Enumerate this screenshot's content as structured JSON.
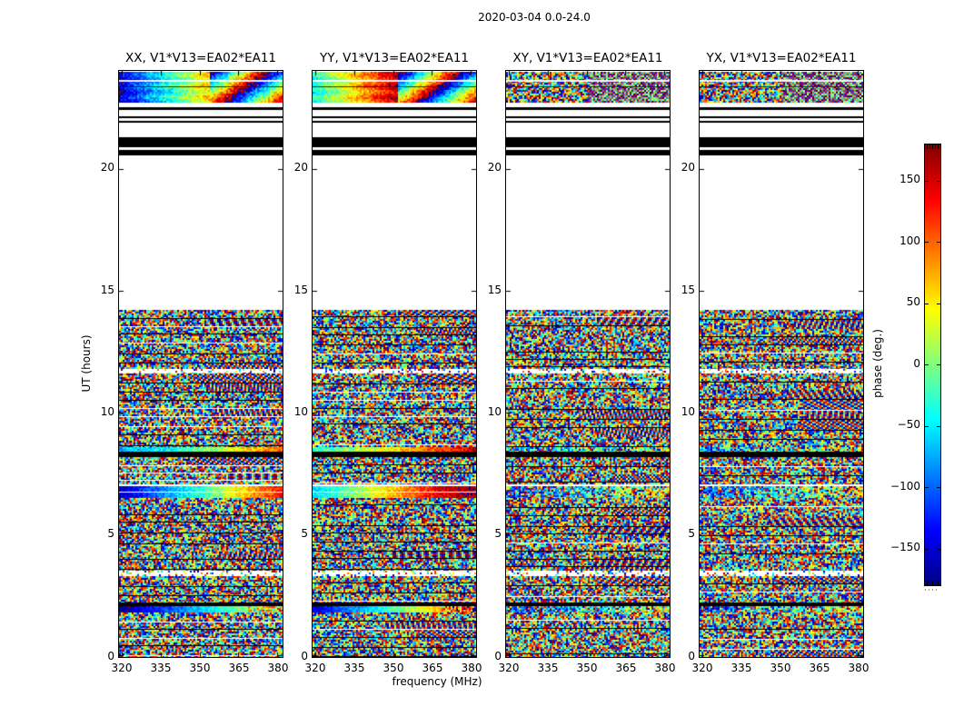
{
  "figure": {
    "title": "2020-03-04 0.0-24.0",
    "background": "#ffffff"
  },
  "axes": {
    "ylabel": "UT (hours)",
    "xlabel": "frequency (MHz)",
    "x_tick_labels": [
      "320",
      "335",
      "350",
      "365",
      "380"
    ],
    "y_tick_labels": [
      "0",
      "5",
      "10",
      "15",
      "20"
    ],
    "x_tick_values_mhz": [
      320,
      335,
      350,
      365,
      380
    ],
    "y_tick_values_hours": [
      0,
      5,
      10,
      15,
      20
    ]
  },
  "colorbar": {
    "label": "phase (deg.)",
    "tick_labels": [
      "150",
      "100",
      "50",
      "0",
      "−50",
      "−100",
      "−150"
    ],
    "tick_values": [
      150,
      100,
      50,
      0,
      -50,
      -100,
      -150
    ],
    "colormap": "jet",
    "top_color": "#800000",
    "bottom_color": "#000083"
  },
  "subplots": [
    {
      "id": "XX",
      "title": "XX, V1*V13=EA02*EA11"
    },
    {
      "id": "YY",
      "title": "YY, V1*V13=EA02*EA11"
    },
    {
      "id": "XY",
      "title": "XY, V1*V13=EA02*EA11"
    },
    {
      "id": "YX",
      "title": "YX, V1*V13=EA02*EA11"
    }
  ],
  "chart_data": {
    "type": "heatmap",
    "title": "2020-03-04 0.0-24.0",
    "xlabel": "frequency (MHz)",
    "ylabel": "UT (hours)",
    "zlabel": "phase (deg.)",
    "x_range_mhz": [
      319,
      382
    ],
    "y_range_hours": [
      0,
      24
    ],
    "z_range_deg": [
      -180,
      180
    ],
    "colormap": "jet",
    "noise_seed": 1337,
    "bands": [
      {
        "ut": [
          22.7,
          23.96
        ],
        "kind": "topband"
      },
      {
        "ut": [
          22.4,
          22.51
        ],
        "kind": "black"
      },
      {
        "ut": [
          22.07,
          22.14
        ],
        "kind": "black"
      },
      {
        "ut": [
          21.88,
          21.95
        ],
        "kind": "black"
      },
      {
        "ut": [
          20.87,
          21.28
        ],
        "kind": "black"
      },
      {
        "ut": [
          20.54,
          20.76
        ],
        "kind": "black"
      },
      {
        "ut": [
          11.8,
          14.22
        ],
        "kind": "noise"
      },
      {
        "ut": [
          11.61,
          11.8
        ],
        "kind": "sparse"
      },
      {
        "ut": [
          8.6,
          11.61
        ],
        "kind": "noise"
      },
      {
        "ut": [
          8.41,
          8.6
        ],
        "kind": "smooth",
        "style": "s1"
      },
      {
        "ut": [
          8.19,
          8.41
        ],
        "kind": "black"
      },
      {
        "ut": [
          7.07,
          8.19
        ],
        "kind": "noise"
      },
      {
        "ut": [
          6.99,
          7.07
        ],
        "kind": "white"
      },
      {
        "ut": [
          6.51,
          6.99
        ],
        "kind": "smooth",
        "style": "s2"
      },
      {
        "ut": [
          3.53,
          6.51
        ],
        "kind": "noise"
      },
      {
        "ut": [
          3.31,
          3.53
        ],
        "kind": "sparse"
      },
      {
        "ut": [
          2.23,
          3.31
        ],
        "kind": "noise"
      },
      {
        "ut": [
          2.08,
          2.23
        ],
        "kind": "black"
      },
      {
        "ut": [
          1.82,
          2.08
        ],
        "kind": "smooth",
        "style": "s3"
      },
      {
        "ut": [
          0.0,
          1.82
        ],
        "kind": "noise"
      }
    ],
    "topband_styles": {
      "XX": {
        "mode": "gradient",
        "p0": -150,
        "p1": 60,
        "split": 0.55,
        "jitter": 60
      },
      "YY": {
        "mode": "gradient",
        "p0": -40,
        "p1": 160,
        "split": 0.52,
        "jitter": 55
      },
      "XY": {
        "mode": "checker"
      },
      "YX": {
        "mode": "checker"
      }
    },
    "smooth_styles": {
      "s1": {
        "XX": {
          "stops": [
            -70,
            -40,
            30,
            110
          ],
          "jitter": 30
        },
        "YY": {
          "stops": [
            -30,
            20,
            90,
            155
          ],
          "jitter": 30
        },
        "XY": {
          "stops": [
            -80,
            -50,
            -10,
            50
          ],
          "jitter": 70,
          "mix": 0.5
        },
        "YX": {
          "stops": [
            -80,
            -50,
            -10,
            50
          ],
          "jitter": 70,
          "mix": 0.5
        }
      },
      "s2": {
        "XX": {
          "stops": [
            -160,
            -90,
            -30,
            60,
            130
          ],
          "jitter": 25,
          "white_row": true
        },
        "YY": {
          "stops": [
            -60,
            0,
            70,
            140,
            175
          ],
          "jitter": 25,
          "white_row": true
        },
        "XY": {
          "stops": [
            -120,
            -80,
            -40,
            10,
            60
          ],
          "jitter": 60,
          "mix": 0.55
        },
        "YX": {
          "stops": [
            -120,
            -80,
            -40,
            10,
            60
          ],
          "jitter": 60,
          "mix": 0.55
        }
      },
      "s3": {
        "XX": {
          "stops": [
            -175,
            -120,
            -60,
            0,
            70
          ],
          "jitter": 20,
          "right_noise": 0.78
        },
        "YY": {
          "stops": [
            -150,
            -85,
            -15,
            60,
            135
          ],
          "jitter": 20,
          "right_noise": 0.78
        },
        "XY": {
          "stops": [
            -140,
            -95,
            -55,
            -10,
            40
          ],
          "jitter": 55,
          "mix": 0.5
        },
        "YX": {
          "stops": [
            -140,
            -95,
            -55,
            -10,
            40
          ],
          "jitter": 55,
          "mix": 0.5
        }
      }
    }
  }
}
